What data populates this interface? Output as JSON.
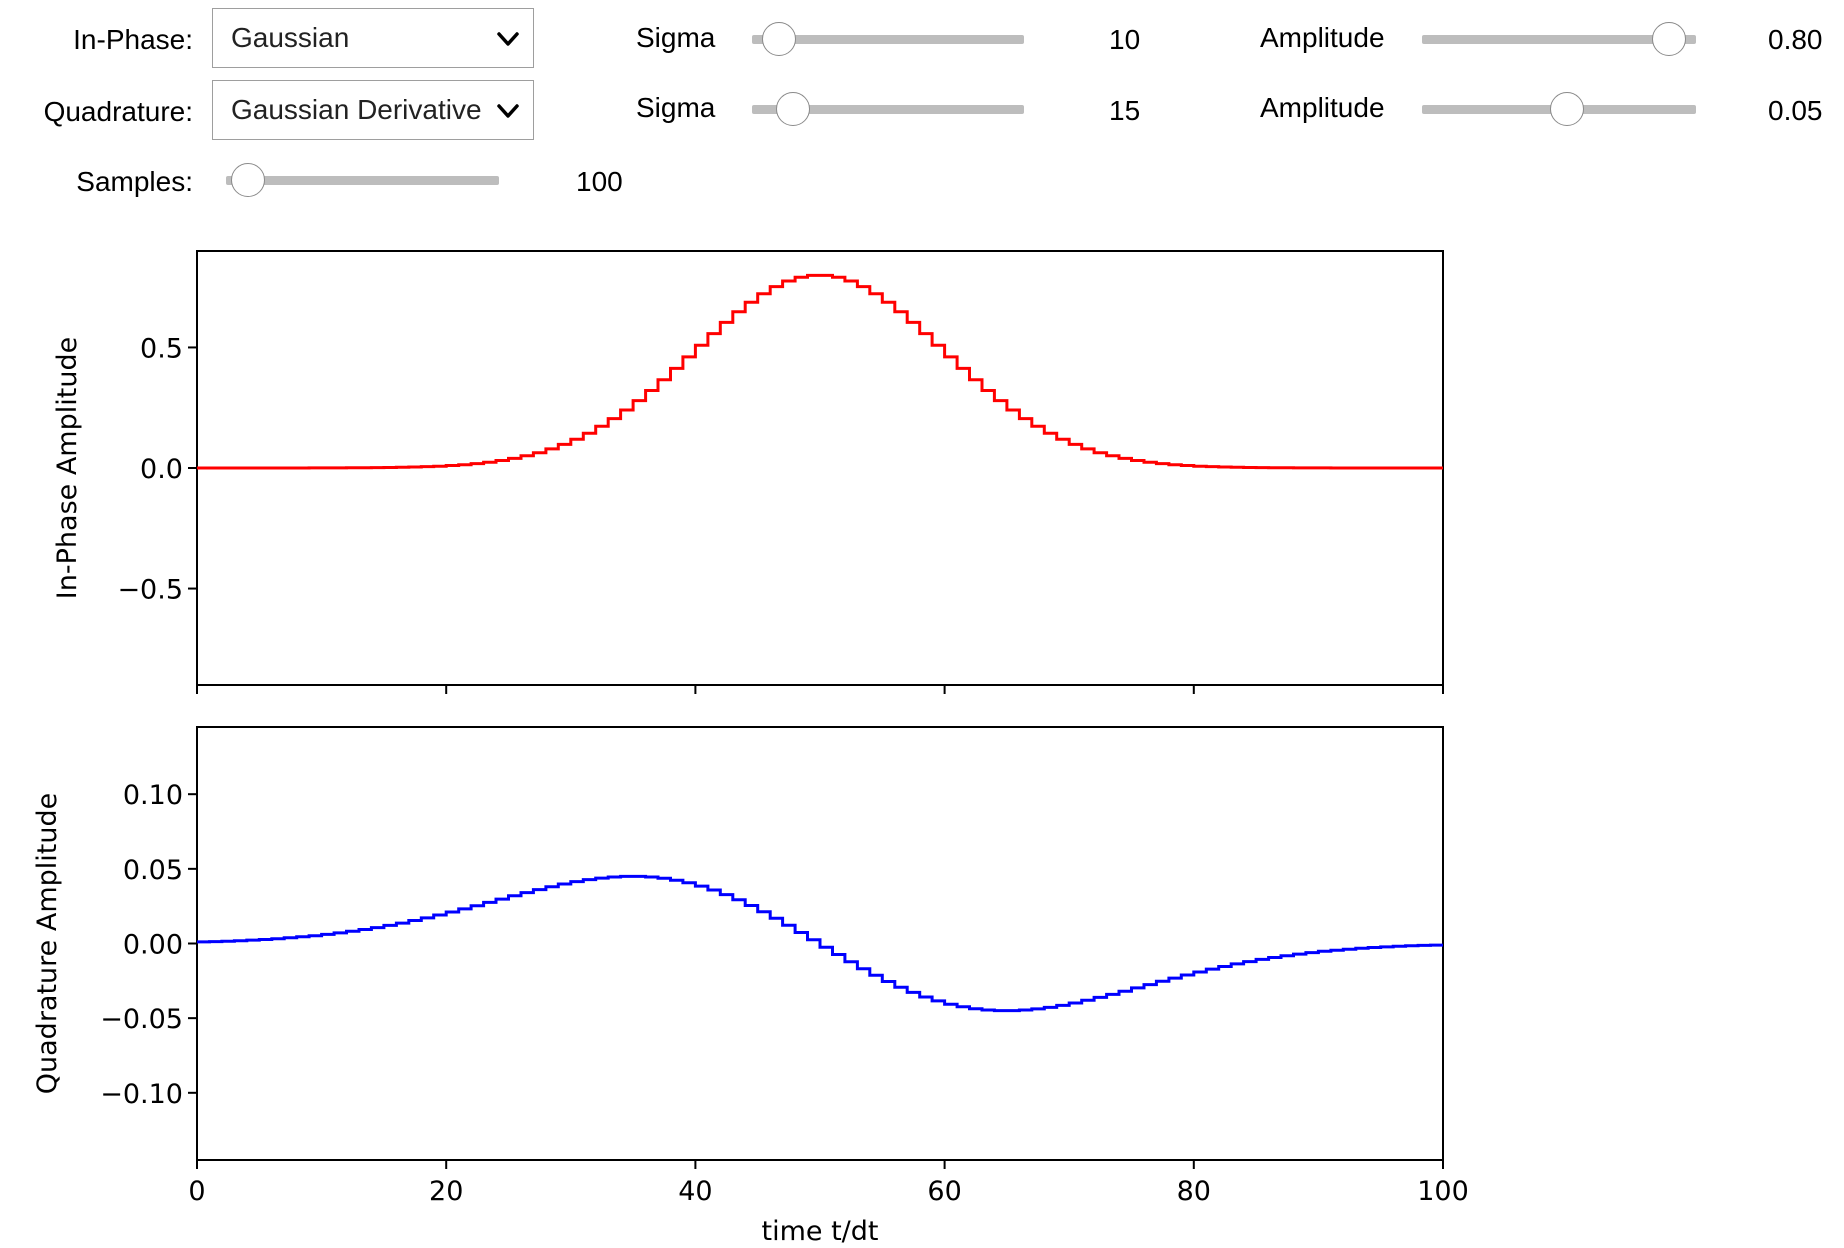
{
  "controls": {
    "in_phase": {
      "label": "In-Phase:",
      "shape": "Gaussian",
      "sigma": {
        "label": "Sigma",
        "value": "10",
        "fraction": 0.1
      },
      "amplitude": {
        "label": "Amplitude",
        "value": "0.80",
        "fraction": 0.9
      }
    },
    "quadrature": {
      "label": "Quadrature:",
      "shape": "Gaussian Derivative",
      "sigma": {
        "label": "Sigma",
        "value": "15",
        "fraction": 0.15
      },
      "amplitude": {
        "label": "Amplitude",
        "value": "0.05",
        "fraction": 0.53
      }
    },
    "samples": {
      "label": "Samples:",
      "value": "100",
      "fraction": 0.08
    }
  },
  "chart_data": [
    {
      "type": "line",
      "ylabel": "In-Phase Amplitude",
      "xlim": [
        0,
        100
      ],
      "ylim": [
        -0.9,
        0.9
      ],
      "yticks": [
        "0.5",
        "0.0",
        "−0.5"
      ],
      "series": [
        {
          "color": "#ff0000",
          "function": "gaussian",
          "samples": 100,
          "center": 50,
          "sigma": 10,
          "amplitude": 0.8
        }
      ]
    },
    {
      "type": "line",
      "xlabel": "time t/dt",
      "ylabel": "Quadrature Amplitude",
      "xlim": [
        0,
        100
      ],
      "ylim": [
        -0.145,
        0.145
      ],
      "xticks": [
        "0",
        "20",
        "40",
        "60",
        "80",
        "100"
      ],
      "yticks": [
        "0.10",
        "0.05",
        "0.00",
        "−0.05",
        "−0.10"
      ],
      "series": [
        {
          "color": "#0000ff",
          "function": "gaussian_derivative",
          "samples": 100,
          "center": 50,
          "sigma": 15,
          "amplitude": 0.045
        }
      ]
    }
  ]
}
